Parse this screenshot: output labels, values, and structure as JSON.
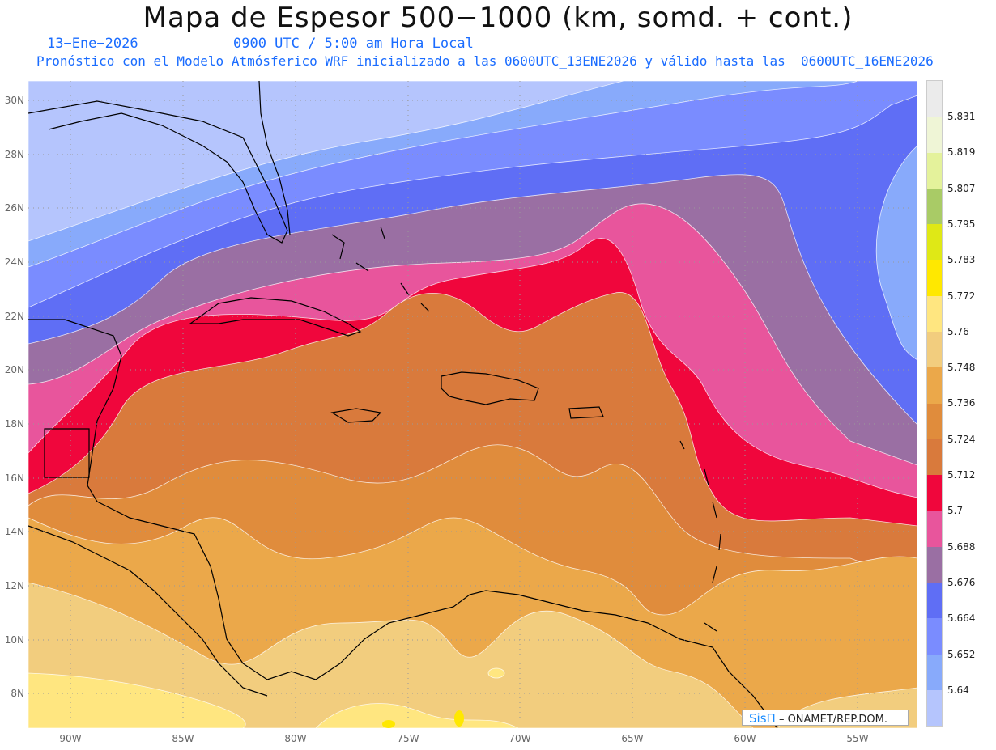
{
  "header": {
    "title": "Mapa de Espesor 500−1000 (km, somd. + cont.)",
    "date": "13−Ene−2026",
    "time": "0900 UTC / 5:00 am Hora Local",
    "description": "Pronóstico con el Modelo Atmósferico WRF inicializado a las 0600UTC_13ENE2026 y válido hasta las  0600UTC_16ENE2026"
  },
  "axes": {
    "lat_labels": [
      "30N",
      "28N",
      "26N",
      "24N",
      "22N",
      "20N",
      "18N",
      "16N",
      "14N",
      "12N",
      "10N",
      "8N"
    ],
    "lon_labels": [
      "90W",
      "85W",
      "80W",
      "75W",
      "70W",
      "65W",
      "60W",
      "55W"
    ]
  },
  "legend": {
    "colors": [
      "#ebebeb",
      "#eff5d6",
      "#e4f29b",
      "#a9cb66",
      "#dfe816",
      "#ffe800",
      "#ffe680",
      "#f2cd7e",
      "#eba84a",
      "#e08c3c",
      "#d97a3c",
      "#f0063c",
      "#e8559c",
      "#9a6fa3",
      "#5f6ef5",
      "#7a8cff",
      "#88aafb",
      "#b5c5fd"
    ],
    "labels": [
      "5.831",
      "5.819",
      "5.807",
      "5.795",
      "5.783",
      "5.772",
      "5.76",
      "5.748",
      "5.736",
      "5.724",
      "5.712",
      "5.7",
      "5.688",
      "5.676",
      "5.664",
      "5.652",
      "5.64"
    ]
  },
  "credit": {
    "brand": "SisΠ",
    "text": "– ONAMET/REP.DOM."
  }
}
